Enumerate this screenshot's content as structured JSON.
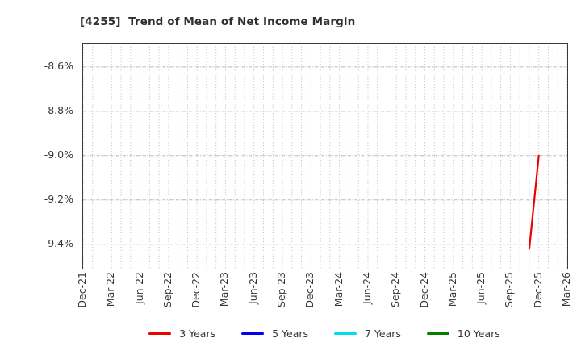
{
  "chart_data": {
    "type": "line",
    "title": "[4255]  Trend of Mean of Net Income Margin",
    "xlabel": "",
    "ylabel": "",
    "x_tick_labels": [
      "Dec-21",
      "Mar-22",
      "Jun-22",
      "Sep-22",
      "Dec-22",
      "Mar-23",
      "Jun-23",
      "Sep-23",
      "Dec-23",
      "Mar-24",
      "Jun-24",
      "Sep-24",
      "Dec-24",
      "Mar-25",
      "Jun-25",
      "Sep-25",
      "Dec-25",
      "Mar-26"
    ],
    "x_axis": {
      "months_total": 51,
      "tick_every_months": 3,
      "minor_grid_every_months": 1
    },
    "y_ticks": [
      {
        "label": "-8.6%",
        "value": -8.6
      },
      {
        "label": "-8.8%",
        "value": -8.8
      },
      {
        "label": "-9.0%",
        "value": -9.0
      },
      {
        "label": "-9.2%",
        "value": -9.2
      },
      {
        "label": "-9.4%",
        "value": -9.4
      }
    ],
    "ylim": [
      -9.51,
      -8.495
    ],
    "grid": true,
    "legend_position": "bottom-center",
    "series": [
      {
        "name": "3 Years",
        "color": "#ee0000",
        "points": [
          {
            "month": 47,
            "period": "Nov-25",
            "value": -9.42
          },
          {
            "month": 48,
            "period": "Dec-25",
            "value": -9.0
          }
        ]
      },
      {
        "name": "5 Years",
        "color": "#0000ee",
        "points": []
      },
      {
        "name": "7 Years",
        "color": "#00dfe6",
        "points": []
      },
      {
        "name": "10 Years",
        "color": "#008000",
        "points": []
      }
    ],
    "colors": {
      "grid": "#b8b8b8",
      "spine": "#3a3a3a",
      "tick_text": "#383838",
      "title_text": "#2f2f2f",
      "background": "#ffffff"
    }
  }
}
